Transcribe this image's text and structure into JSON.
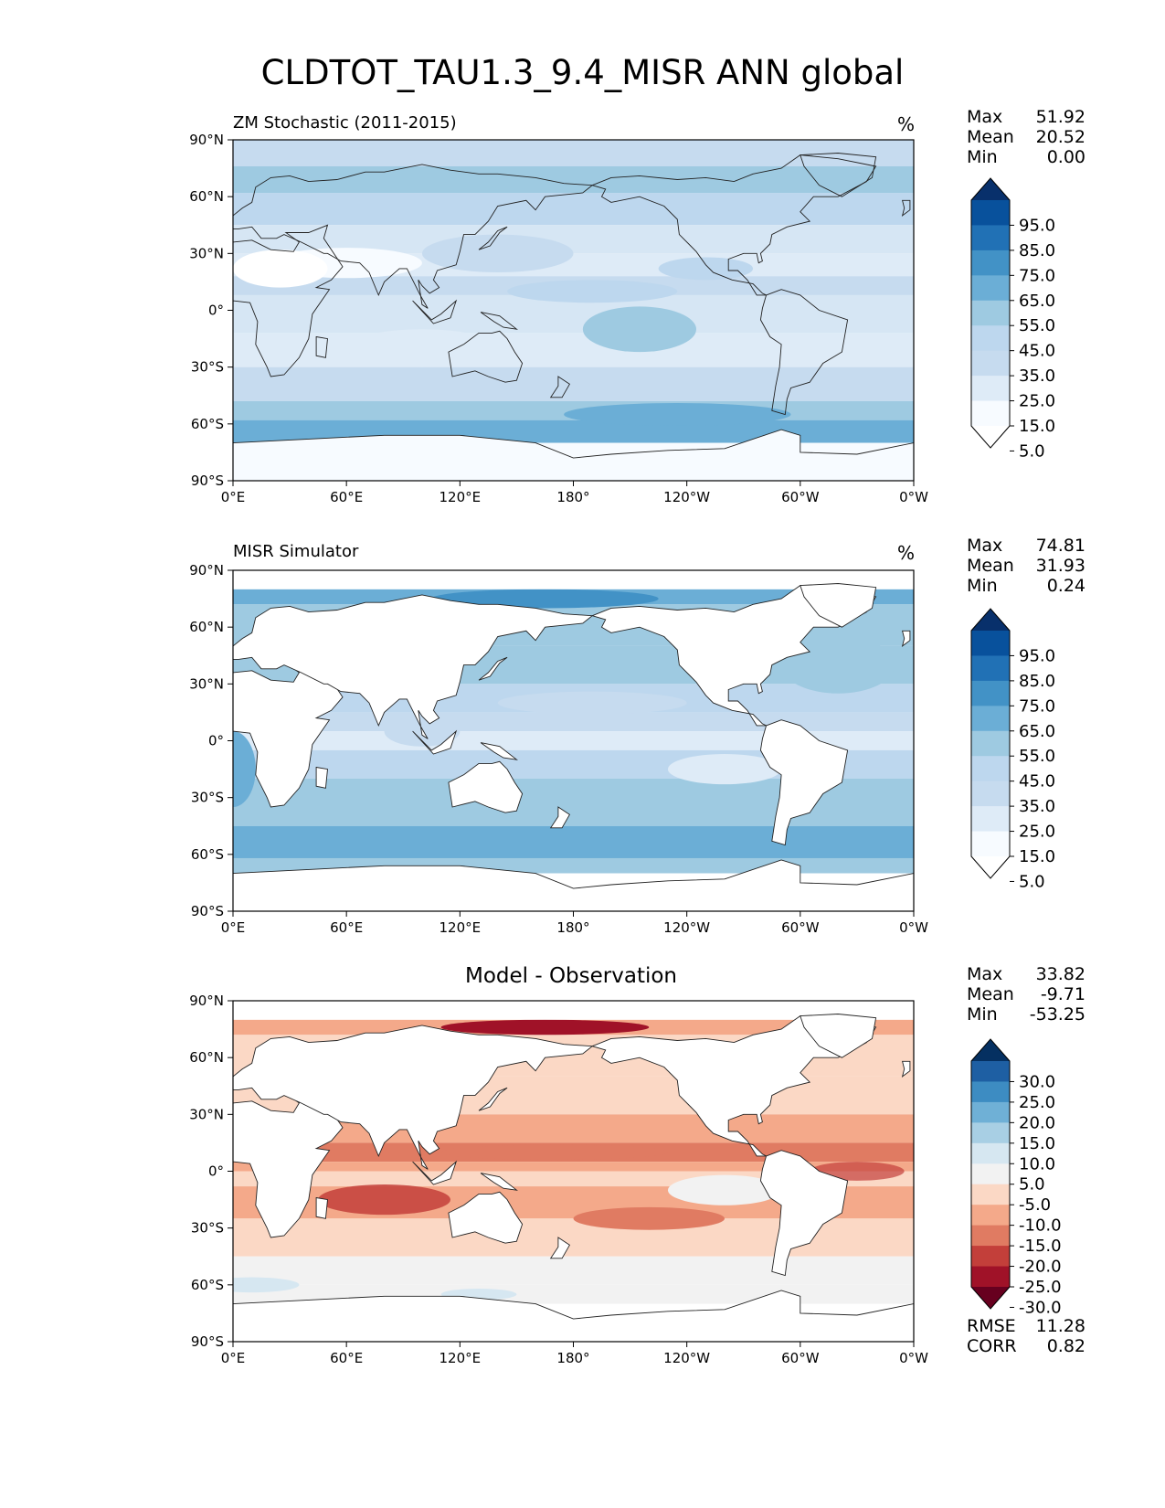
{
  "figure": {
    "title": "CLDTOT_TAU1.3_9.4_MISR ANN global"
  },
  "axes": {
    "lat_ticks": [
      "90°N",
      "60°N",
      "30°N",
      "0°",
      "30°S",
      "60°S",
      "90°S"
    ],
    "lon_ticks": [
      "0°E",
      "60°E",
      "120°E",
      "180°",
      "120°W",
      "60°W",
      "0°W"
    ]
  },
  "panels": [
    {
      "title": "ZM Stochastic (2011-2015)",
      "units": "%",
      "stats": [
        {
          "label": "Max",
          "value": "51.92"
        },
        {
          "label": "Mean",
          "value": "20.52"
        },
        {
          "label": "Min",
          "value": "0.00"
        }
      ],
      "colorbar": {
        "labels": [
          "95.0",
          "85.0",
          "75.0",
          "65.0",
          "55.0",
          "45.0",
          "35.0",
          "25.0",
          "15.0",
          "5.0"
        ],
        "colors": [
          "#08306b",
          "#08519c",
          "#2171b5",
          "#4292c6",
          "#6baed6",
          "#9ecae1",
          "#bdd7ee",
          "#c6dbef",
          "#deebf7",
          "#f7fbff",
          "#ffffff"
        ]
      }
    },
    {
      "title": "MISR Simulator",
      "units": "%",
      "stats": [
        {
          "label": "Max",
          "value": "74.81"
        },
        {
          "label": "Mean",
          "value": "31.93"
        },
        {
          "label": "Min",
          "value": "0.24"
        }
      ],
      "colorbar": {
        "labels": [
          "95.0",
          "85.0",
          "75.0",
          "65.0",
          "55.0",
          "45.0",
          "35.0",
          "25.0",
          "15.0",
          "5.0"
        ],
        "colors": [
          "#08306b",
          "#08519c",
          "#2171b5",
          "#4292c6",
          "#6baed6",
          "#9ecae1",
          "#bdd7ee",
          "#c6dbef",
          "#deebf7",
          "#f7fbff",
          "#ffffff"
        ]
      }
    },
    {
      "title": "Model - Observation",
      "stats": [
        {
          "label": "Max",
          "value": "33.82"
        },
        {
          "label": "Mean",
          "value": "-9.71"
        },
        {
          "label": "Min",
          "value": "-53.25"
        }
      ],
      "colorbar": {
        "labels": [
          "30.0",
          "25.0",
          "20.0",
          "15.0",
          "10.0",
          "5.0",
          "-5.0",
          "-10.0",
          "-15.0",
          "-20.0",
          "-25.0",
          "-30.0"
        ],
        "colors": [
          "#053061",
          "#1e5fa3",
          "#3d8cc2",
          "#6fb0d6",
          "#a8cfe4",
          "#d6e7f1",
          "#f2f2f2",
          "#fbd8c5",
          "#f4a98a",
          "#e07b62",
          "#c33f3a",
          "#a01228",
          "#67001f"
        ]
      },
      "metrics": [
        {
          "label": "RMSE",
          "value": "11.28"
        },
        {
          "label": "CORR",
          "value": "0.82"
        }
      ]
    }
  ]
}
